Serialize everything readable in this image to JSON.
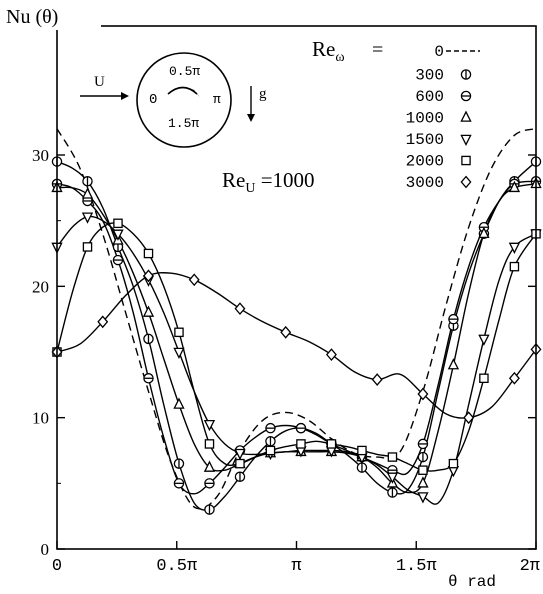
{
  "chart_data": {
    "type": "scatter",
    "title": "",
    "ylabel": "Nu (θ)",
    "xlabel": "θ rad",
    "xlim": [
      0,
      6.2832
    ],
    "ylim": [
      0,
      33
    ],
    "xticks": [
      {
        "value": 0,
        "label": "0"
      },
      {
        "value": 1.5708,
        "label": "0.5π"
      },
      {
        "value": 3.1416,
        "label": "π"
      },
      {
        "value": 4.7124,
        "label": "1.5π"
      },
      {
        "value": 6.2832,
        "label": "2π"
      }
    ],
    "yticks": [
      {
        "value": 0,
        "label": "0"
      },
      {
        "value": 10,
        "label": "10"
      },
      {
        "value": 20,
        "label": "20"
      },
      {
        "value": 30,
        "label": "30"
      }
    ],
    "legend_title": "Re",
    "legend_sub": "ω",
    "legend_eq": "=",
    "legend_placement": "top-right",
    "annotation": {
      "main": "Re",
      "sub": "U",
      "rest": " =1000"
    },
    "inset": {
      "flow_label": "U",
      "gravity_label": "g",
      "top": "0.5π",
      "left": "0",
      "right": "π",
      "bottom": "1.5π"
    },
    "series": [
      {
        "name": "0",
        "marker": "dash",
        "x": [
          0.0,
          0.3,
          0.6,
          0.9,
          1.2,
          1.5,
          1.8,
          2.1,
          2.4,
          2.7,
          3.0,
          3.3,
          3.6,
          3.9,
          4.2,
          4.5,
          4.8,
          5.1,
          5.4,
          5.7,
          6.0,
          6.2832
        ],
        "y": [
          32,
          29,
          24,
          18,
          12,
          6.5,
          3.2,
          4.0,
          7.5,
          9.8,
          10.4,
          9.8,
          8.4,
          7.3,
          7.0,
          7.4,
          12,
          18.5,
          24.5,
          29,
          31.5,
          32
        ]
      },
      {
        "name": "300",
        "marker": "circle-v",
        "x": [
          0.0,
          0.2,
          0.4,
          0.6,
          0.8,
          1.0,
          1.2,
          1.4,
          1.6,
          1.8,
          2.0,
          2.2,
          2.4,
          2.6,
          2.8,
          3.0,
          3.2,
          3.4,
          3.6,
          3.8,
          4.0,
          4.2,
          4.4,
          4.6,
          4.8,
          5.0,
          5.2,
          5.4,
          5.6,
          5.8,
          6.0,
          6.2832
        ],
        "y": [
          29.5,
          29,
          28,
          26,
          23,
          20,
          16,
          11,
          6.5,
          3.5,
          3.0,
          4.0,
          5.5,
          7.0,
          8.2,
          9.0,
          9.2,
          8.8,
          8.0,
          7.2,
          6.2,
          5.0,
          4.3,
          4.5,
          7.0,
          12,
          17,
          21,
          24,
          26.5,
          28,
          29.5
        ]
      },
      {
        "name": "600",
        "marker": "circle-h",
        "x": [
          0.0,
          0.2,
          0.4,
          0.6,
          0.8,
          1.0,
          1.2,
          1.4,
          1.6,
          1.8,
          2.0,
          2.2,
          2.4,
          2.6,
          2.8,
          3.0,
          3.2,
          3.4,
          3.6,
          3.8,
          4.0,
          4.2,
          4.4,
          4.6,
          4.8,
          5.0,
          5.2,
          5.4,
          5.6,
          5.8,
          6.0,
          6.2832
        ],
        "y": [
          27.8,
          27.5,
          26.5,
          25,
          22,
          18,
          13,
          8.5,
          5.0,
          4.2,
          5.0,
          6.2,
          7.5,
          8.5,
          9.2,
          9.4,
          9.2,
          8.7,
          8.0,
          7.5,
          7.0,
          6.5,
          6.0,
          5.8,
          8.0,
          12.5,
          17.5,
          21.5,
          24.5,
          26.5,
          27.8,
          28
        ]
      },
      {
        "name": "1000",
        "marker": "triangle-up",
        "x": [
          0.0,
          0.2,
          0.4,
          0.6,
          0.8,
          1.0,
          1.2,
          1.4,
          1.6,
          1.8,
          2.0,
          2.2,
          2.4,
          2.6,
          2.8,
          3.0,
          3.2,
          3.4,
          3.6,
          3.8,
          4.0,
          4.2,
          4.4,
          4.6,
          4.8,
          5.0,
          5.2,
          5.4,
          5.6,
          5.8,
          6.0,
          6.2832
        ],
        "y": [
          27.5,
          27.5,
          27,
          25.5,
          23.5,
          21,
          18,
          14.5,
          11,
          8.0,
          6.2,
          6.0,
          6.5,
          7.0,
          7.3,
          7.4,
          7.4,
          7.4,
          7.4,
          7.3,
          7.0,
          6.2,
          5.0,
          4.3,
          5.0,
          9.0,
          14,
          19.5,
          24,
          26.5,
          27.5,
          27.8
        ]
      },
      {
        "name": "1500",
        "marker": "triangle-down",
        "x": [
          0.0,
          0.2,
          0.4,
          0.6,
          0.8,
          1.0,
          1.2,
          1.4,
          1.6,
          1.8,
          2.0,
          2.2,
          2.4,
          2.6,
          2.8,
          3.0,
          3.2,
          3.4,
          3.6,
          3.8,
          4.0,
          4.2,
          4.4,
          4.6,
          4.8,
          5.0,
          5.2,
          5.4,
          5.6,
          5.8,
          6.0,
          6.2832
        ],
        "y": [
          23,
          24.5,
          25.3,
          25,
          24,
          22.5,
          20.5,
          18,
          15,
          12,
          9.5,
          8.0,
          7.3,
          7.2,
          7.3,
          7.4,
          7.5,
          7.5,
          7.5,
          7.4,
          7.0,
          6.4,
          5.5,
          4.5,
          4.0,
          3.5,
          6.0,
          11,
          16,
          20.5,
          23,
          24
        ]
      },
      {
        "name": "2000",
        "marker": "square",
        "x": [
          0.0,
          0.2,
          0.4,
          0.6,
          0.8,
          1.0,
          1.2,
          1.4,
          1.6,
          1.8,
          2.0,
          2.2,
          2.4,
          2.6,
          2.8,
          3.0,
          3.2,
          3.4,
          3.6,
          3.8,
          4.0,
          4.2,
          4.4,
          4.6,
          4.8,
          5.0,
          5.2,
          5.4,
          5.6,
          5.8,
          6.0,
          6.2832
        ],
        "y": [
          15,
          19.5,
          23,
          24.5,
          24.8,
          24,
          22.5,
          20,
          16.5,
          12,
          8.0,
          6.5,
          6.5,
          7.0,
          7.5,
          7.8,
          8.0,
          8.2,
          8.0,
          7.8,
          7.5,
          7.2,
          7.0,
          6.5,
          6.0,
          6.0,
          6.5,
          9.0,
          13,
          17.5,
          21.5,
          24
        ]
      },
      {
        "name": "3000",
        "marker": "diamond",
        "x": [
          0.0,
          0.3,
          0.6,
          0.9,
          1.2,
          1.5,
          1.8,
          2.1,
          2.4,
          2.7,
          3.0,
          3.3,
          3.6,
          3.9,
          4.2,
          4.5,
          4.8,
          5.1,
          5.4,
          5.7,
          6.0,
          6.2832
        ],
        "y": [
          15,
          15.6,
          17.3,
          19.3,
          20.8,
          21,
          20.5,
          19.5,
          18.3,
          17.3,
          16.5,
          15.8,
          14.8,
          13.5,
          12.9,
          13.3,
          11.8,
          10.3,
          10,
          10.8,
          13,
          15.2
        ]
      }
    ]
  }
}
